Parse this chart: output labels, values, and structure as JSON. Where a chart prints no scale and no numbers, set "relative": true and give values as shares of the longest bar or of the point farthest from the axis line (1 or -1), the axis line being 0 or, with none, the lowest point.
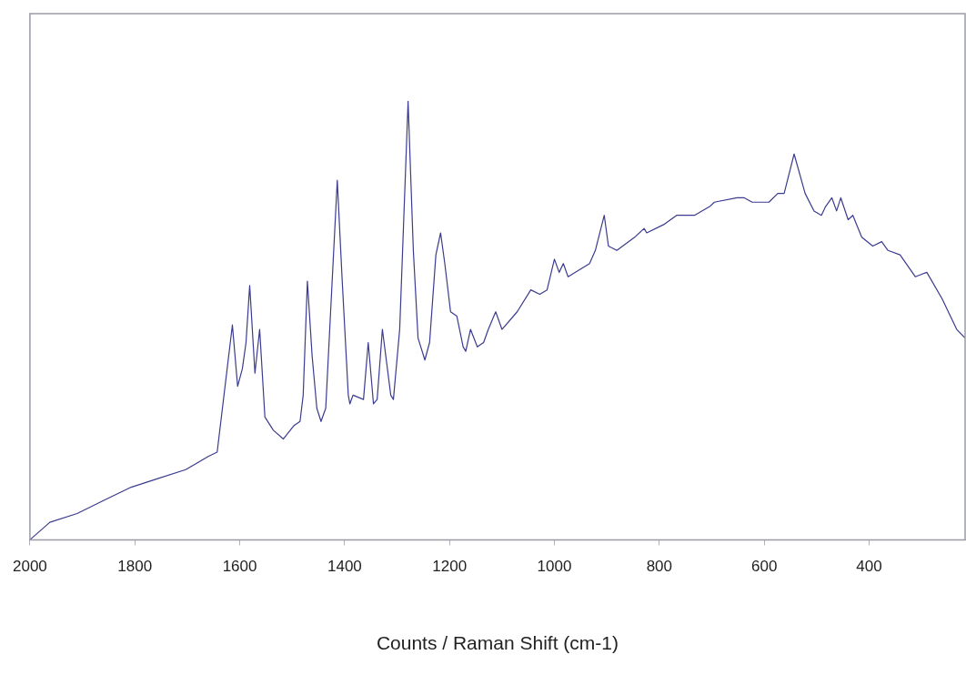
{
  "chart_data": {
    "type": "line",
    "xlabel": "Counts / Raman Shift (cm-1)",
    "relative": true,
    "grid": false,
    "legend": false,
    "marker": "none",
    "line_style": "solid",
    "xlim": [
      2000,
      217
    ],
    "xticks": [
      2000,
      1800,
      1600,
      1400,
      1200,
      1000,
      800,
      600,
      400
    ],
    "series": [
      {
        "color": "#3b3b8f",
        "x": [
          2000,
          1962,
          1910,
          1859,
          1807,
          1755,
          1703,
          1660,
          1643,
          1614,
          1604,
          1595,
          1588,
          1581,
          1571,
          1562,
          1552,
          1536,
          1517,
          1497,
          1485,
          1479,
          1471,
          1462,
          1453,
          1445,
          1436,
          1428,
          1414,
          1405,
          1393,
          1390,
          1384,
          1364,
          1355,
          1345,
          1338,
          1328,
          1312,
          1307,
          1295,
          1279,
          1269,
          1260,
          1247,
          1238,
          1226,
          1217,
          1209,
          1198,
          1186,
          1174,
          1169,
          1160,
          1147,
          1135,
          1126,
          1112,
          1100,
          1071,
          1045,
          1028,
          1014,
          1000,
          991,
          983,
          974,
          933,
          922,
          905,
          897,
          881,
          847,
          829,
          824,
          790,
          767,
          733,
          704,
          695,
          652,
          638,
          623,
          591,
          574,
          562,
          543,
          522,
          505,
          491,
          483,
          471,
          462,
          454,
          440,
          431,
          414,
          393,
          376,
          364,
          341,
          312,
          290,
          261,
          233,
          217
        ],
        "values": [
          0.0,
          0.04,
          0.06,
          0.09,
          0.12,
          0.14,
          0.16,
          0.19,
          0.2,
          0.49,
          0.35,
          0.39,
          0.45,
          0.58,
          0.38,
          0.48,
          0.28,
          0.25,
          0.23,
          0.26,
          0.27,
          0.33,
          0.59,
          0.42,
          0.3,
          0.27,
          0.3,
          0.49,
          0.82,
          0.6,
          0.33,
          0.31,
          0.33,
          0.32,
          0.45,
          0.31,
          0.32,
          0.48,
          0.33,
          0.32,
          0.48,
          1.0,
          0.66,
          0.46,
          0.41,
          0.45,
          0.65,
          0.7,
          0.63,
          0.52,
          0.51,
          0.44,
          0.43,
          0.48,
          0.44,
          0.45,
          0.48,
          0.52,
          0.48,
          0.52,
          0.57,
          0.56,
          0.57,
          0.64,
          0.61,
          0.63,
          0.6,
          0.63,
          0.66,
          0.74,
          0.67,
          0.66,
          0.69,
          0.71,
          0.7,
          0.72,
          0.74,
          0.74,
          0.76,
          0.77,
          0.78,
          0.78,
          0.77,
          0.77,
          0.79,
          0.79,
          0.88,
          0.79,
          0.75,
          0.74,
          0.76,
          0.78,
          0.75,
          0.78,
          0.73,
          0.74,
          0.69,
          0.67,
          0.68,
          0.66,
          0.65,
          0.6,
          0.61,
          0.55,
          0.48,
          0.46
        ]
      }
    ]
  }
}
